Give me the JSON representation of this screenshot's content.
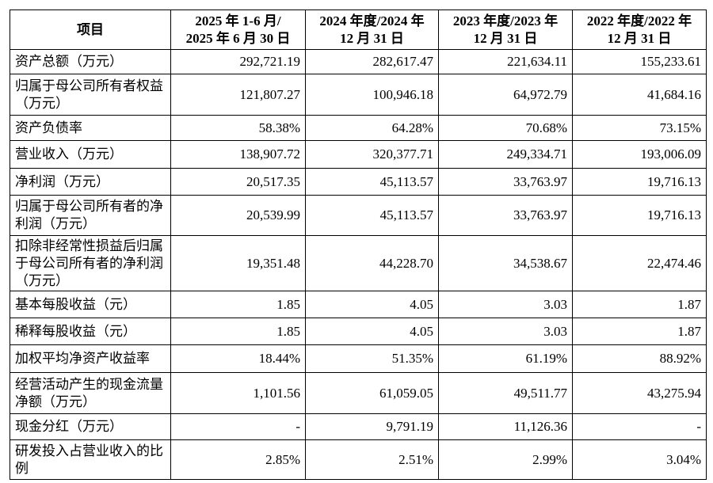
{
  "table": {
    "header": [
      [
        "项目"
      ],
      [
        "2025 年 1-6 月/",
        "2025 年 6 月 30 日"
      ],
      [
        "2024 年度/2024 年",
        "12 月 31 日"
      ],
      [
        "2023 年度/2023 年",
        "12 月 31 日"
      ],
      [
        "2022 年度/2022 年",
        "12 月 31 日"
      ]
    ],
    "rows": [
      [
        "资产总额（万元）",
        "292,721.19",
        "282,617.47",
        "221,634.11",
        "155,233.61"
      ],
      [
        "归属于母公司所有者权益（万元）",
        "121,807.27",
        "100,946.18",
        "64,972.79",
        "41,684.16"
      ],
      [
        "资产负债率",
        "58.38%",
        "64.28%",
        "70.68%",
        "73.15%"
      ],
      [
        "营业收入（万元）",
        "138,907.72",
        "320,377.71",
        "249,334.71",
        "193,006.09"
      ],
      [
        "净利润（万元）",
        "20,517.35",
        "45,113.57",
        "33,763.97",
        "19,716.13"
      ],
      [
        "归属于母公司所有者的净利润（万元）",
        "20,539.99",
        "45,113.57",
        "33,763.97",
        "19,716.13"
      ],
      [
        "扣除非经常性损益后归属于母公司所有者的净利润（万元）",
        "19,351.48",
        "44,228.70",
        "34,538.67",
        "22,474.46"
      ],
      [
        "基本每股收益（元）",
        "1.85",
        "4.05",
        "3.03",
        "1.87"
      ],
      [
        "稀释每股收益（元）",
        "1.85",
        "4.05",
        "3.03",
        "1.87"
      ],
      [
        "加权平均净资产收益率",
        "18.44%",
        "51.35%",
        "61.19%",
        "88.92%"
      ],
      [
        "经营活动产生的现金流量净额（万元）",
        "1,101.56",
        "61,059.05",
        "49,511.77",
        "43,275.94"
      ],
      [
        "现金分红（万元）",
        "-",
        "9,791.19",
        "11,126.36",
        "-"
      ],
      [
        "研发投入占营业收入的比例",
        "2.85%",
        "2.51%",
        "2.99%",
        "3.04%"
      ]
    ]
  }
}
